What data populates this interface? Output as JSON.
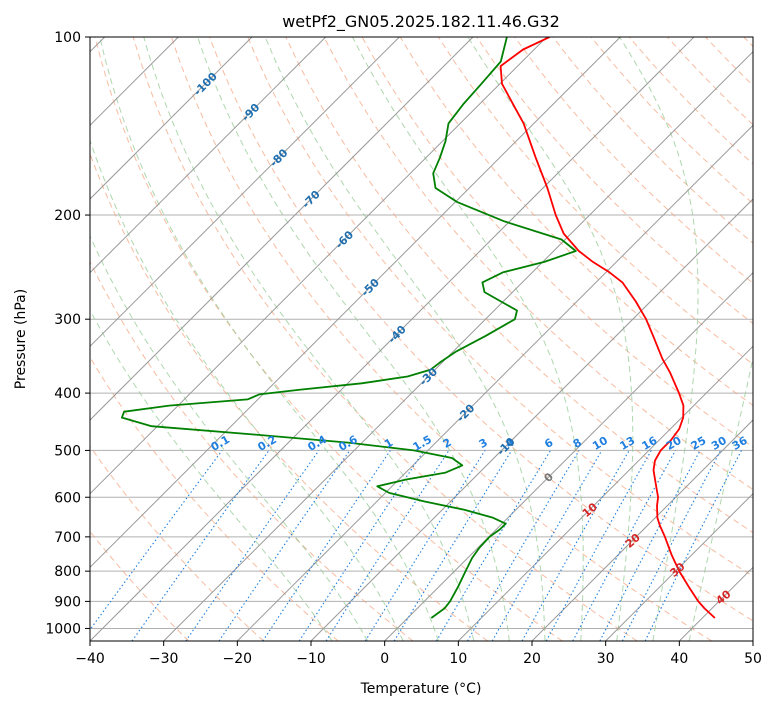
{
  "chart_data": {
    "type": "line",
    "title": "wetPf2_GN05.2025.182.11.46.G32",
    "xlabel": "Temperature (°C)",
    "ylabel": "Pressure (hPa)",
    "xlim": [
      -40,
      50
    ],
    "ylim": [
      1050,
      100
    ],
    "y_scale": "log",
    "skew": true,
    "x_ticks": [
      "−40",
      "−30",
      "−20",
      "−10",
      "0",
      "10",
      "20",
      "30",
      "40",
      "50"
    ],
    "x_tick_values": [
      -40,
      -30,
      -20,
      -10,
      0,
      10,
      20,
      30,
      40,
      50
    ],
    "y_ticks": [
      "100",
      "200",
      "300",
      "400",
      "500",
      "600",
      "700",
      "800",
      "900",
      "1000"
    ],
    "y_tick_values": [
      100,
      200,
      300,
      400,
      500,
      600,
      700,
      800,
      900,
      1000
    ],
    "grid": true,
    "colors": {
      "temperature": "#ff0000",
      "dewpoint": "#008000",
      "isotherm": "#999999",
      "dry_adiabat": "#f4a582",
      "moist_adiabat": "#9acd9a",
      "mixing_ratio": "#1f7fe0",
      "isotherm_label": "#1f6fb0",
      "adiabat_label": "#d62728"
    },
    "series": [
      {
        "name": "",
        "values_note_hidden": "",
        "points": [
          {
            "p": 960,
            "t": 41.7
          },
          {
            "p": 925,
            "t": 39.0
          },
          {
            "p": 900,
            "t": 37.2
          },
          {
            "p": 850,
            "t": 33.9
          },
          {
            "p": 800,
            "t": 30.5
          },
          {
            "p": 750,
            "t": 27.2
          },
          {
            "p": 700,
            "t": 23.9
          },
          {
            "p": 670,
            "t": 21.7
          },
          {
            "p": 650,
            "t": 20.3
          },
          {
            "p": 620,
            "t": 18.6
          },
          {
            "p": 600,
            "t": 17.6
          },
          {
            "p": 570,
            "t": 15.5
          },
          {
            "p": 540,
            "t": 13.3
          },
          {
            "p": 520,
            "t": 12.2
          },
          {
            "p": 500,
            "t": 11.6
          },
          {
            "p": 480,
            "t": 11.6
          },
          {
            "p": 460,
            "t": 11.2
          },
          {
            "p": 440,
            "t": 10.2
          },
          {
            "p": 420,
            "t": 8.6
          },
          {
            "p": 400,
            "t": 6.3
          },
          {
            "p": 370,
            "t": 2.4
          },
          {
            "p": 350,
            "t": -0.6
          },
          {
            "p": 320,
            "t": -5.0
          },
          {
            "p": 300,
            "t": -8.2
          },
          {
            "p": 280,
            "t": -12.0
          },
          {
            "p": 260,
            "t": -16.4
          },
          {
            "p": 250,
            "t": -19.5
          },
          {
            "p": 240,
            "t": -23.2
          },
          {
            "p": 230,
            "t": -26.6
          },
          {
            "p": 215,
            "t": -31.0
          },
          {
            "p": 200,
            "t": -34.6
          },
          {
            "p": 180,
            "t": -39.4
          },
          {
            "p": 160,
            "t": -45.1
          },
          {
            "p": 140,
            "t": -51.4
          },
          {
            "p": 130,
            "t": -55.4
          },
          {
            "p": 120,
            "t": -59.7
          },
          {
            "p": 112,
            "t": -62.3
          },
          {
            "p": 105,
            "t": -61.5
          },
          {
            "p": 100,
            "t": -59.6
          }
        ]
      },
      {
        "name": "",
        "points": [
          {
            "p": 960,
            "t": 3.2
          },
          {
            "p": 925,
            "t": 3.7
          },
          {
            "p": 900,
            "t": 3.5
          },
          {
            "p": 850,
            "t": 2.6
          },
          {
            "p": 800,
            "t": 1.5
          },
          {
            "p": 760,
            "t": 0.6
          },
          {
            "p": 730,
            "t": 0.2
          },
          {
            "p": 700,
            "t": 0.1
          },
          {
            "p": 680,
            "t": 0.5
          },
          {
            "p": 665,
            "t": 0.5
          },
          {
            "p": 650,
            "t": -2.0
          },
          {
            "p": 630,
            "t": -7.0
          },
          {
            "p": 610,
            "t": -13.5
          },
          {
            "p": 590,
            "t": -19.5
          },
          {
            "p": 575,
            "t": -22.0
          },
          {
            "p": 560,
            "t": -19.0
          },
          {
            "p": 545,
            "t": -14.6
          },
          {
            "p": 530,
            "t": -13.3
          },
          {
            "p": 515,
            "t": -15.7
          },
          {
            "p": 500,
            "t": -21.9
          },
          {
            "p": 485,
            "t": -31.9
          },
          {
            "p": 470,
            "t": -45.8
          },
          {
            "p": 455,
            "t": -60.8
          },
          {
            "p": 440,
            "t": -66.0
          },
          {
            "p": 430,
            "t": -66.5
          },
          {
            "p": 420,
            "t": -61.2
          },
          {
            "p": 410,
            "t": -51.4
          },
          {
            "p": 402,
            "t": -50.5
          },
          {
            "p": 395,
            "t": -45.8
          },
          {
            "p": 385,
            "t": -38.1
          },
          {
            "p": 375,
            "t": -32.8
          },
          {
            "p": 365,
            "t": -30.6
          },
          {
            "p": 355,
            "t": -30.3
          },
          {
            "p": 340,
            "t": -29.6
          },
          {
            "p": 320,
            "t": -27.7
          },
          {
            "p": 300,
            "t": -26.0
          },
          {
            "p": 290,
            "t": -26.9
          },
          {
            "p": 280,
            "t": -30.3
          },
          {
            "p": 270,
            "t": -33.8
          },
          {
            "p": 260,
            "t": -35.4
          },
          {
            "p": 250,
            "t": -34.0
          },
          {
            "p": 240,
            "t": -29.8
          },
          {
            "p": 230,
            "t": -27.0
          },
          {
            "p": 220,
            "t": -30.5
          },
          {
            "p": 205,
            "t": -40.7
          },
          {
            "p": 190,
            "t": -49.8
          },
          {
            "p": 180,
            "t": -54.6
          },
          {
            "p": 170,
            "t": -56.9
          },
          {
            "p": 160,
            "t": -58.1
          },
          {
            "p": 150,
            "t": -59.6
          },
          {
            "p": 140,
            "t": -61.6
          },
          {
            "p": 130,
            "t": -62.2
          },
          {
            "p": 120,
            "t": -62.5
          },
          {
            "p": 110,
            "t": -62.9
          },
          {
            "p": 100,
            "t": -65.4
          }
        ]
      }
    ],
    "isotherm_labels": [
      {
        "text": "-100",
        "t": -100,
        "p": 120
      },
      {
        "text": "-90",
        "t": -90,
        "p": 134
      },
      {
        "text": "-80",
        "t": -80,
        "p": 160
      },
      {
        "text": "-70",
        "t": -70,
        "p": 188
      },
      {
        "text": "-60",
        "t": -60,
        "p": 220
      },
      {
        "text": "-50",
        "t": -50,
        "p": 265
      },
      {
        "text": "-40",
        "t": -40,
        "p": 318
      },
      {
        "text": "-30",
        "t": -30,
        "p": 375
      },
      {
        "text": "-20",
        "t": -20,
        "p": 432
      },
      {
        "text": "-10",
        "t": -10,
        "p": 492
      },
      {
        "text": "0",
        "t": 0,
        "p": 555
      }
    ],
    "dry_adiabat_labels": [
      {
        "text": "10",
        "t": 10,
        "p": 630
      },
      {
        "text": "20",
        "t": 20,
        "p": 710
      },
      {
        "text": "30",
        "t": 30,
        "p": 795
      },
      {
        "text": "40",
        "t": 40,
        "p": 885
      }
    ],
    "mixing_ratio_labels": [
      {
        "text": "0.1",
        "w": 0.1
      },
      {
        "text": "0.2",
        "w": 0.2
      },
      {
        "text": "0.4",
        "w": 0.4
      },
      {
        "text": "0.6",
        "w": 0.6
      },
      {
        "text": "1",
        "w": 1
      },
      {
        "text": "1.5",
        "w": 1.5
      },
      {
        "text": "2",
        "w": 2
      },
      {
        "text": "3",
        "w": 3
      },
      {
        "text": "4",
        "w": 4
      },
      {
        "text": "6",
        "w": 6
      },
      {
        "text": "8",
        "w": 8
      },
      {
        "text": "10",
        "w": 10
      },
      {
        "text": "13",
        "w": 13
      },
      {
        "text": "16",
        "w": 16
      },
      {
        "text": "20",
        "w": 20
      },
      {
        "text": "25",
        "w": 25
      },
      {
        "text": "30",
        "w": 30
      },
      {
        "text": "36",
        "w": 36
      }
    ]
  }
}
